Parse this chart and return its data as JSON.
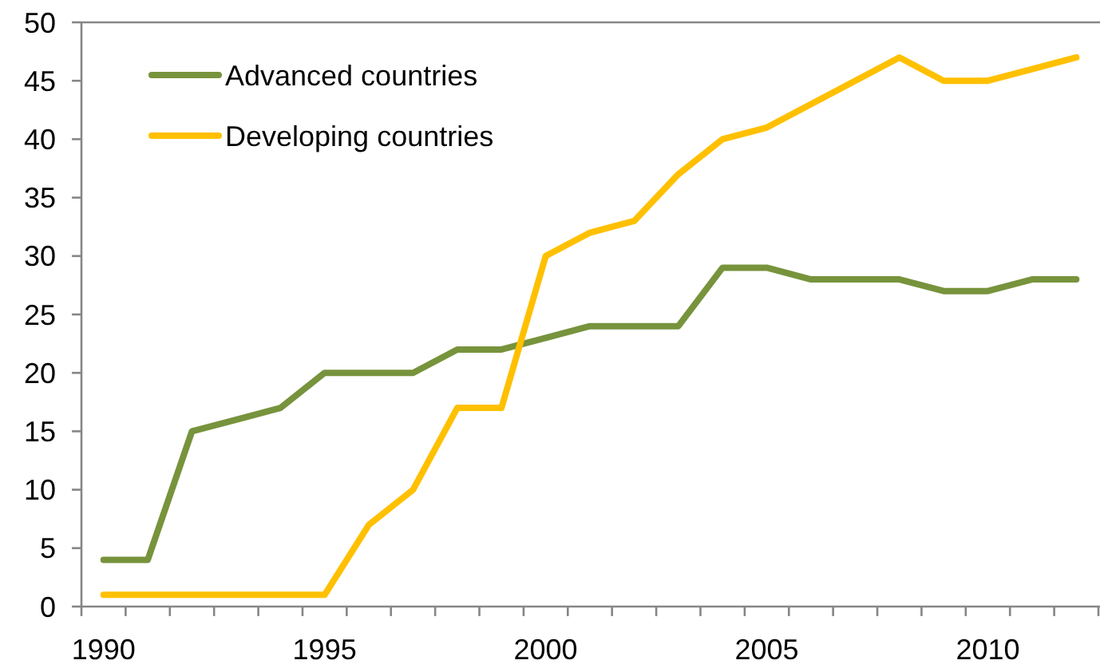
{
  "chart_data": {
    "type": "line",
    "categories": [
      "1990",
      null,
      null,
      null,
      null,
      "1995",
      null,
      null,
      null,
      null,
      "2000",
      null,
      null,
      null,
      null,
      "2005",
      null,
      null,
      null,
      null,
      "2010",
      null,
      null
    ],
    "series": [
      {
        "name": "Advanced countries",
        "color": "#77933c",
        "values": [
          4,
          4,
          15,
          16,
          17,
          20,
          20,
          20,
          22,
          22,
          23,
          24,
          24,
          24,
          29,
          29,
          28,
          28,
          28,
          27,
          27,
          28,
          28
        ]
      },
      {
        "name": "Developing countries",
        "color": "#ffc000",
        "values": [
          1,
          1,
          1,
          1,
          1,
          1,
          7,
          10,
          17,
          17,
          30,
          32,
          33,
          37,
          40,
          41,
          43,
          45,
          47,
          45,
          45,
          46,
          47
        ]
      }
    ],
    "ylim": [
      0,
      50
    ],
    "yticks": [
      0,
      5,
      10,
      15,
      20,
      25,
      30,
      35,
      40,
      45,
      50
    ],
    "legend": "top left"
  }
}
